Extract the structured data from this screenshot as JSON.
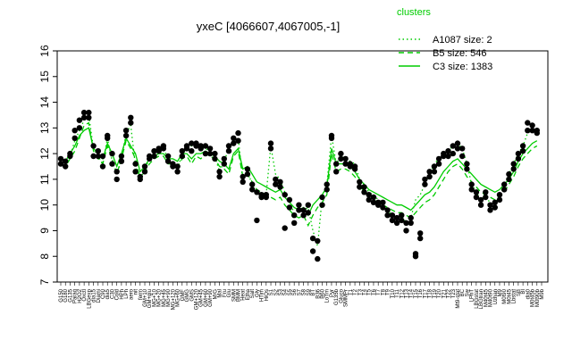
{
  "chart_data": {
    "type": "line",
    "title": "yxeC [4066607,4067005,-1]",
    "xlabel": "",
    "ylabel": "",
    "ylim": [
      7,
      16
    ],
    "yticks": [
      7,
      8,
      9,
      10,
      11,
      12,
      13,
      14,
      15,
      16
    ],
    "grid": false,
    "legend": {
      "title": "clusters",
      "placement": "top-right",
      "entries": [
        {
          "label": "A1087 size: 2",
          "style": "dotted"
        },
        {
          "label": "B5 size: 546",
          "style": "dashed"
        },
        {
          "label": "C3 size: 1383",
          "style": "solid"
        }
      ]
    },
    "line_color": "#00cc00",
    "point_color": "#000000",
    "x_labels": [
      "G150",
      "G180",
      "G135",
      "Paraq",
      "H2O2",
      "Oxctl",
      "LBGexp",
      "dia15",
      "Diami",
      "C90",
      "dia5",
      "C30",
      "Cold",
      "HPh",
      "LPh",
      "aero",
      "nit",
      "ferm",
      "GM+10",
      "GM+glu",
      "MG+10",
      "MG+20",
      "MG+45",
      "MG+90",
      "MG+120",
      "MG+60",
      "GMF",
      "GMG",
      "GMS",
      "GM+120",
      "GM+45",
      "GM+60",
      "GM+90",
      "M/G",
      "Mal",
      "Fru",
      "Glu",
      "SMM",
      "BMM",
      "Heat",
      "Etha",
      "Salt",
      "Gly",
      "HTim",
      "HiOs",
      "S1",
      "S2",
      "S3",
      "S4",
      "S5",
      "S6",
      "S7",
      "S8",
      "S9",
      "BT",
      "B36",
      "B60",
      "LoTm",
      "Pyr",
      "G135b",
      "Gluco",
      "SMMPr",
      "T1",
      "T2",
      "T3",
      "T4",
      "T5",
      "T6",
      "T7",
      "T8",
      "T9",
      "T10",
      "T11",
      "T12",
      "T13",
      "T14",
      "T15",
      "T16",
      "T17",
      "T18",
      "T19",
      "T20",
      "T21",
      "T22",
      "T23",
      "Mt9-stat",
      "BC",
      "Sw",
      "LPhT",
      "LBGstat",
      "LBGtran",
      "M40t45",
      "M40t90",
      "Uzhan",
      "M9",
      "M0t90",
      "M0t45",
      "Lbstat",
      "SB",
      "BI",
      "dia0",
      "M0t45b",
      "M0t90b",
      "M9b"
    ],
    "series": [
      {
        "name": "C3 size: 1383",
        "style": "solid",
        "values": [
          11.8,
          11.7,
          12.0,
          12.3,
          12.7,
          12.9,
          13.0,
          12.2,
          12.0,
          11.8,
          12.4,
          12.0,
          11.5,
          12.0,
          12.6,
          12.3,
          12.0,
          11.3,
          11.5,
          11.8,
          11.9,
          12.0,
          12.0,
          11.8,
          11.8,
          11.7,
          12.0,
          12.0,
          11.8,
          12.0,
          12.0,
          12.1,
          12.0,
          11.9,
          11.7,
          11.6,
          11.4,
          12.0,
          12.2,
          11.4,
          11.5,
          11.2,
          10.9,
          10.8,
          10.7,
          10.6,
          10.5,
          10.6,
          10.3,
          10.1,
          9.9,
          9.8,
          9.9,
          9.6,
          10.0,
          10.2,
          10.4,
          10.7,
          12.2,
          11.6,
          11.6,
          11.6,
          11.5,
          11.3,
          11.0,
          10.8,
          10.6,
          10.5,
          10.4,
          10.3,
          10.2,
          10.1,
          10.0,
          10.0,
          9.9,
          9.8,
          10.0,
          10.2,
          10.4,
          10.5,
          10.7,
          11.0,
          11.3,
          11.5,
          11.7,
          11.8,
          11.6,
          11.4,
          11.2,
          11.0,
          10.8,
          10.7,
          10.6,
          10.5,
          10.6,
          10.8,
          11.0,
          11.3,
          11.7,
          12.0,
          12.2,
          12.4,
          12.5
        ]
      },
      {
        "name": "B5 size: 546",
        "style": "dashed",
        "values": [
          11.6,
          11.5,
          11.8,
          12.1,
          12.6,
          13.1,
          13.2,
          12.1,
          11.8,
          11.6,
          12.3,
          11.8,
          11.2,
          11.8,
          12.5,
          12.2,
          11.8,
          11.0,
          11.3,
          11.6,
          11.8,
          11.9,
          11.9,
          11.6,
          11.6,
          11.5,
          11.8,
          11.9,
          11.6,
          11.9,
          11.8,
          12.0,
          11.9,
          11.8,
          11.5,
          11.4,
          11.2,
          11.9,
          12.1,
          11.1,
          11.2,
          10.9,
          10.6,
          10.5,
          10.4,
          10.3,
          10.2,
          10.3,
          10.0,
          9.8,
          9.6,
          9.5,
          9.6,
          9.2,
          9.6,
          9.9,
          10.1,
          10.4,
          12.0,
          11.3,
          11.4,
          11.4,
          11.3,
          11.1,
          10.8,
          10.5,
          10.3,
          10.2,
          10.1,
          10.0,
          9.9,
          9.8,
          9.7,
          9.7,
          9.6,
          9.5,
          9.7,
          9.9,
          10.1,
          10.2,
          10.4,
          10.7,
          11.0,
          11.3,
          11.5,
          11.6,
          11.4,
          11.1,
          10.9,
          10.7,
          10.5,
          10.4,
          10.3,
          10.2,
          10.3,
          10.5,
          10.8,
          11.1,
          11.5,
          11.8,
          12.0,
          12.2,
          12.3
        ]
      },
      {
        "name": "A1087 size: 2",
        "style": "dotted",
        "values": [
          11.6,
          11.6,
          11.9,
          12.5,
          12.9,
          13.3,
          13.5,
          12.2,
          11.9,
          11.6,
          12.6,
          11.7,
          11.2,
          11.8,
          12.8,
          13.1,
          11.5,
          11.0,
          11.4,
          11.8,
          12.0,
          12.1,
          12.2,
          11.8,
          11.6,
          11.4,
          12.0,
          12.2,
          12.3,
          12.3,
          12.2,
          12.2,
          12.1,
          11.9,
          11.3,
          11.7,
          12.2,
          12.5,
          12.6,
          11.0,
          11.3,
          10.8,
          10.6,
          10.3,
          10.4,
          12.3,
          11.2,
          11.0,
          10.5,
          10.3,
          9.6,
          9.9,
          9.8,
          9.9,
          9.0,
          8.4,
          10.3,
          10.8,
          12.7,
          11.6,
          11.9,
          11.8,
          11.7,
          11.6,
          11.0,
          10.8,
          10.5,
          10.4,
          10.2,
          10.1,
          9.8,
          9.6,
          9.5,
          9.6,
          9.3,
          9.5,
          10.2,
          10.4,
          10.8,
          11.2,
          11.6,
          11.8,
          12.0,
          12.1,
          12.3,
          12.4,
          12.2,
          11.6,
          10.8,
          10.5,
          10.2,
          10.5,
          10.0,
          10.1,
          10.4,
          10.8,
          11.2,
          11.6,
          12.0,
          12.3,
          12.8,
          12.9,
          12.8
        ]
      }
    ],
    "points": [
      [
        11.8,
        11.6
      ],
      [
        11.7,
        11.5
      ],
      [
        12.0,
        11.9
      ],
      [
        12.9,
        12.6
      ],
      [
        13.3,
        13.0
      ],
      [
        13.6,
        13.4
      ],
      [
        13.6,
        13.4
      ],
      [
        12.3,
        11.9
      ],
      [
        12.1,
        11.9
      ],
      [
        11.9,
        11.5
      ],
      [
        12.7,
        12.6
      ],
      [
        12.0,
        11.6
      ],
      [
        11.3,
        11.0
      ],
      [
        11.9,
        11.7
      ],
      [
        12.9,
        12.7
      ],
      [
        13.2,
        13.4
      ],
      [
        11.6,
        11.3
      ],
      [
        11.1,
        11.0
      ],
      [
        11.5,
        11.3
      ],
      [
        11.9,
        11.8
      ],
      [
        12.1,
        11.9
      ],
      [
        12.2,
        12.1
      ],
      [
        12.3,
        12.2
      ],
      [
        11.9,
        11.7
      ],
      [
        11.6,
        11.5
      ],
      [
        11.5,
        11.3
      ],
      [
        12.1,
        11.9
      ],
      [
        12.3,
        12.2
      ],
      [
        12.4,
        12.1
      ],
      [
        12.4,
        12.3
      ],
      [
        12.3,
        12.2
      ],
      [
        12.3,
        12.0
      ],
      [
        12.2,
        12.0
      ],
      [
        12.0,
        11.8
      ],
      [
        11.3,
        11.1
      ],
      [
        11.8,
        11.6
      ],
      [
        12.3,
        12.1
      ],
      [
        12.6,
        12.4
      ],
      [
        12.8,
        12.5
      ],
      [
        11.1,
        10.9
      ],
      [
        11.4,
        11.2
      ],
      [
        10.8,
        10.6
      ],
      [
        10.5,
        9.4
      ],
      [
        10.4,
        10.3
      ],
      [
        10.4,
        10.3
      ],
      [
        12.4,
        12.2
      ],
      [
        11.0,
        10.8
      ],
      [
        10.9,
        10.7
      ],
      [
        10.4,
        9.1
      ],
      [
        10.2,
        9.9
      ],
      [
        9.6,
        9.3
      ],
      [
        10.0,
        9.8
      ],
      [
        9.8,
        9.6
      ],
      [
        10.0,
        9.7
      ],
      [
        8.7,
        8.2
      ],
      [
        8.6,
        7.9
      ],
      [
        10.3,
        10.0
      ],
      [
        10.8,
        10.6
      ],
      [
        12.7,
        12.6
      ],
      [
        11.6,
        11.3
      ],
      [
        12.0,
        11.8
      ],
      [
        11.8,
        11.6
      ],
      [
        11.6,
        11.5
      ],
      [
        11.5,
        11.4
      ],
      [
        10.9,
        10.7
      ],
      [
        10.7,
        10.5
      ],
      [
        10.4,
        10.2
      ],
      [
        10.3,
        10.1
      ],
      [
        10.1,
        10.0
      ],
      [
        10.1,
        9.9
      ],
      [
        9.8,
        9.6
      ],
      [
        9.6,
        9.4
      ],
      [
        9.5,
        9.3
      ],
      [
        9.6,
        9.4
      ],
      [
        9.3,
        9.0
      ],
      [
        9.5,
        9.3
      ],
      [
        8.1,
        8.0
      ],
      [
        8.9,
        8.7
      ],
      [
        11.0,
        10.8
      ],
      [
        11.3,
        11.1
      ],
      [
        11.5,
        11.3
      ],
      [
        11.8,
        11.6
      ],
      [
        12.0,
        11.9
      ],
      [
        12.1,
        11.9
      ],
      [
        12.3,
        12.0
      ],
      [
        12.4,
        12.2
      ],
      [
        12.2,
        11.9
      ],
      [
        11.6,
        11.4
      ],
      [
        10.8,
        10.6
      ],
      [
        10.5,
        10.3
      ],
      [
        10.2,
        10.0
      ],
      [
        10.5,
        10.3
      ],
      [
        10.0,
        9.8
      ],
      [
        10.1,
        9.9
      ],
      [
        10.4,
        10.2
      ],
      [
        10.8,
        10.6
      ],
      [
        11.2,
        11.0
      ],
      [
        11.6,
        11.4
      ],
      [
        12.0,
        11.8
      ],
      [
        12.3,
        12.1
      ],
      [
        13.2,
        12.9
      ],
      [
        13.1,
        12.9
      ],
      [
        12.9,
        12.8
      ]
    ]
  }
}
